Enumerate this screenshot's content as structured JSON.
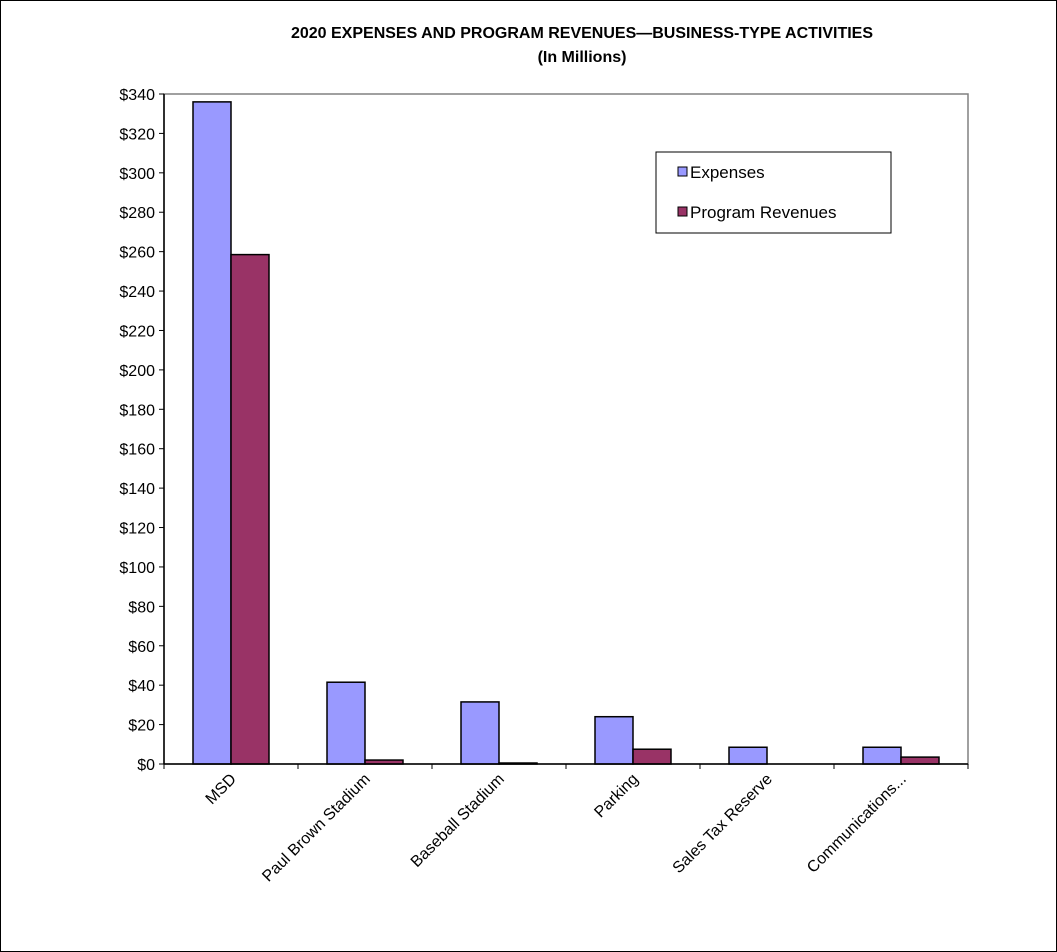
{
  "chart_data": {
    "type": "bar",
    "title": "2020 EXPENSES AND PROGRAM REVENUES—BUSINESS-TYPE ACTIVITIES",
    "subtitle": "(In Millions)",
    "categories": [
      "MSD",
      "Paul Brown Stadium",
      "Baseball Stadium",
      "Parking",
      "Sales Tax Reserve",
      "Communications..."
    ],
    "series": [
      {
        "name": "Expenses",
        "values": [
          336,
          41.5,
          31.5,
          24,
          8.5,
          8.5
        ]
      },
      {
        "name": "Program Revenues",
        "values": [
          258.5,
          2,
          0.5,
          7.5,
          0,
          3.5
        ]
      }
    ],
    "ylim": [
      0,
      340
    ],
    "ytick_step": 20,
    "ytick_labels": [
      "$0",
      "$20",
      "$40",
      "$60",
      "$80",
      "$100",
      "$120",
      "$140",
      "$160",
      "$180",
      "$200",
      "$220",
      "$240",
      "$260",
      "$280",
      "$300",
      "$320",
      "$340"
    ],
    "grid": false,
    "legend_position": "top-right",
    "colors": {
      "Expenses": "#9999ff",
      "Program Revenues": "#993366"
    }
  }
}
